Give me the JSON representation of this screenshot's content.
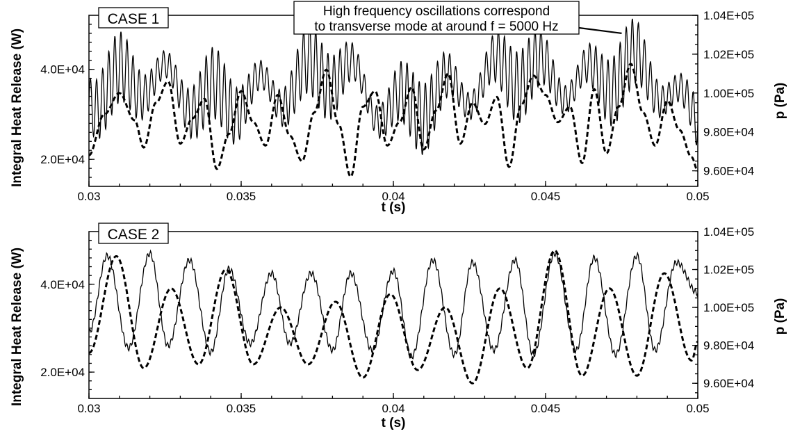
{
  "chart_data": [
    {
      "type": "line",
      "case_label": "CASE 1",
      "xlabel": "t (s)",
      "ylabel_left": "Integral Heat Release (W)",
      "ylabel_right": "p (Pa)",
      "xlim": [
        0.03,
        0.05
      ],
      "ylim_left": [
        14000,
        52000
      ],
      "ylim_right": [
        95200,
        104000
      ],
      "x_ticks": [
        0.03,
        0.035,
        0.04,
        0.045,
        0.05
      ],
      "x_tick_labels": [
        "0.03",
        "0.035",
        "0.04",
        "0.045",
        "0.05"
      ],
      "y_left_ticks": [
        40000,
        20000
      ],
      "y_left_tick_labels": [
        "4.0E+04",
        "2.0E+04"
      ],
      "y_right_ticks": [
        104000,
        102000,
        100000,
        98000,
        96000
      ],
      "y_right_tick_labels": [
        "1.04E+05",
        "1.02E+05",
        "1.00E+05",
        "9.80E+04",
        "9.60E+04"
      ],
      "annotation": {
        "lines": [
          "High frequency oscillations correspond",
          "to transverse mode at around f = 5000 Hz"
        ],
        "arrow_to": [
          0.0475,
          48000
        ]
      },
      "series": [
        {
          "style": "solid",
          "axis": "left",
          "low_freq_hz": 650,
          "high_freq_hz": 5000,
          "x": [
            0.03,
            0.032,
            0.034,
            0.036,
            0.038,
            0.04,
            0.042,
            0.044,
            0.046,
            0.048,
            0.05
          ],
          "values": [
            35000,
            38000,
            33000,
            35000,
            40000,
            31000,
            35000,
            40000,
            37000,
            40000,
            30000
          ]
        },
        {
          "style": "dashed",
          "axis": "right",
          "x": [
            0.03,
            0.0305,
            0.031,
            0.0315,
            0.0318,
            0.0322,
            0.0326,
            0.033,
            0.0334,
            0.0338,
            0.0342,
            0.0346,
            0.035,
            0.0354,
            0.0358,
            0.0362,
            0.0366,
            0.037,
            0.0374,
            0.0378,
            0.0382,
            0.0386,
            0.039,
            0.0394,
            0.0398,
            0.0402,
            0.0406,
            0.041,
            0.0414,
            0.0418,
            0.0422,
            0.0426,
            0.043,
            0.0434,
            0.0438,
            0.0442,
            0.0446,
            0.045,
            0.0454,
            0.0458,
            0.0462,
            0.0466,
            0.047,
            0.0474,
            0.0478,
            0.0482,
            0.0486,
            0.049,
            0.0494,
            0.0498,
            0.05
          ],
          "values": [
            96800,
            98900,
            100000,
            98600,
            97200,
            99500,
            100600,
            97400,
            98700,
            99700,
            96100,
            97900,
            100100,
            98500,
            97300,
            99900,
            97800,
            96500,
            99000,
            101200,
            98400,
            95700,
            99300,
            100100,
            97300,
            98500,
            100300,
            97100,
            99100,
            101000,
            97400,
            99500,
            98400,
            99800,
            96200,
            99400,
            100900,
            99900,
            98500,
            99300,
            96400,
            100200,
            96900,
            99300,
            101500,
            99000,
            97300,
            99600,
            98100,
            96700,
            96000
          ]
        }
      ]
    },
    {
      "type": "line",
      "case_label": "CASE 2",
      "xlabel": "t (s)",
      "ylabel_left": "Integral Heat Release (W)",
      "ylabel_right": "p (Pa)",
      "xlim": [
        0.03,
        0.05
      ],
      "ylim_left": [
        14000,
        52000
      ],
      "ylim_right": [
        95200,
        104000
      ],
      "x_ticks": [
        0.03,
        0.035,
        0.04,
        0.045,
        0.05
      ],
      "x_tick_labels": [
        "0.03",
        "0.035",
        "0.04",
        "0.045",
        "0.05"
      ],
      "y_left_ticks": [
        40000,
        20000
      ],
      "y_left_tick_labels": [
        "4.0E+04",
        "2.0E+04"
      ],
      "y_right_ticks": [
        104000,
        102000,
        100000,
        98000,
        96000
      ],
      "y_right_tick_labels": [
        "1.04E+05",
        "1.02E+05",
        "1.00E+05",
        "9.80E+04",
        "9.60E+04"
      ],
      "series": [
        {
          "style": "solid",
          "axis": "left",
          "x": [
            0.03,
            0.0306,
            0.0313,
            0.032,
            0.0326,
            0.0333,
            0.034,
            0.0346,
            0.0353,
            0.036,
            0.0366,
            0.0373,
            0.038,
            0.0386,
            0.0393,
            0.04,
            0.0406,
            0.0413,
            0.042,
            0.0426,
            0.0433,
            0.044,
            0.0446,
            0.0453,
            0.046,
            0.0466,
            0.0473,
            0.048,
            0.0486,
            0.0493,
            0.05
          ],
          "values": [
            29000,
            46500,
            25500,
            47000,
            26000,
            45500,
            24500,
            43500,
            26500,
            42500,
            26500,
            42500,
            25000,
            42500,
            25000,
            43000,
            23500,
            45500,
            24000,
            45000,
            25000,
            45500,
            24000,
            47000,
            25000,
            46000,
            24000,
            46500,
            25000,
            45000,
            38000
          ]
        },
        {
          "style": "dashed",
          "axis": "right",
          "x": [
            0.03,
            0.0309,
            0.0318,
            0.0327,
            0.0336,
            0.0345,
            0.0354,
            0.0363,
            0.0372,
            0.0381,
            0.039,
            0.0399,
            0.0408,
            0.0417,
            0.0426,
            0.0435,
            0.0444,
            0.0453,
            0.0462,
            0.0471,
            0.048,
            0.0489,
            0.0498,
            0.05
          ],
          "values": [
            97600,
            102700,
            96800,
            101000,
            97000,
            102000,
            97000,
            100000,
            97000,
            100300,
            96300,
            100700,
            96700,
            100000,
            96000,
            101000,
            96800,
            103000,
            96400,
            101000,
            96400,
            101800,
            97200,
            98200
          ]
        }
      ]
    }
  ]
}
